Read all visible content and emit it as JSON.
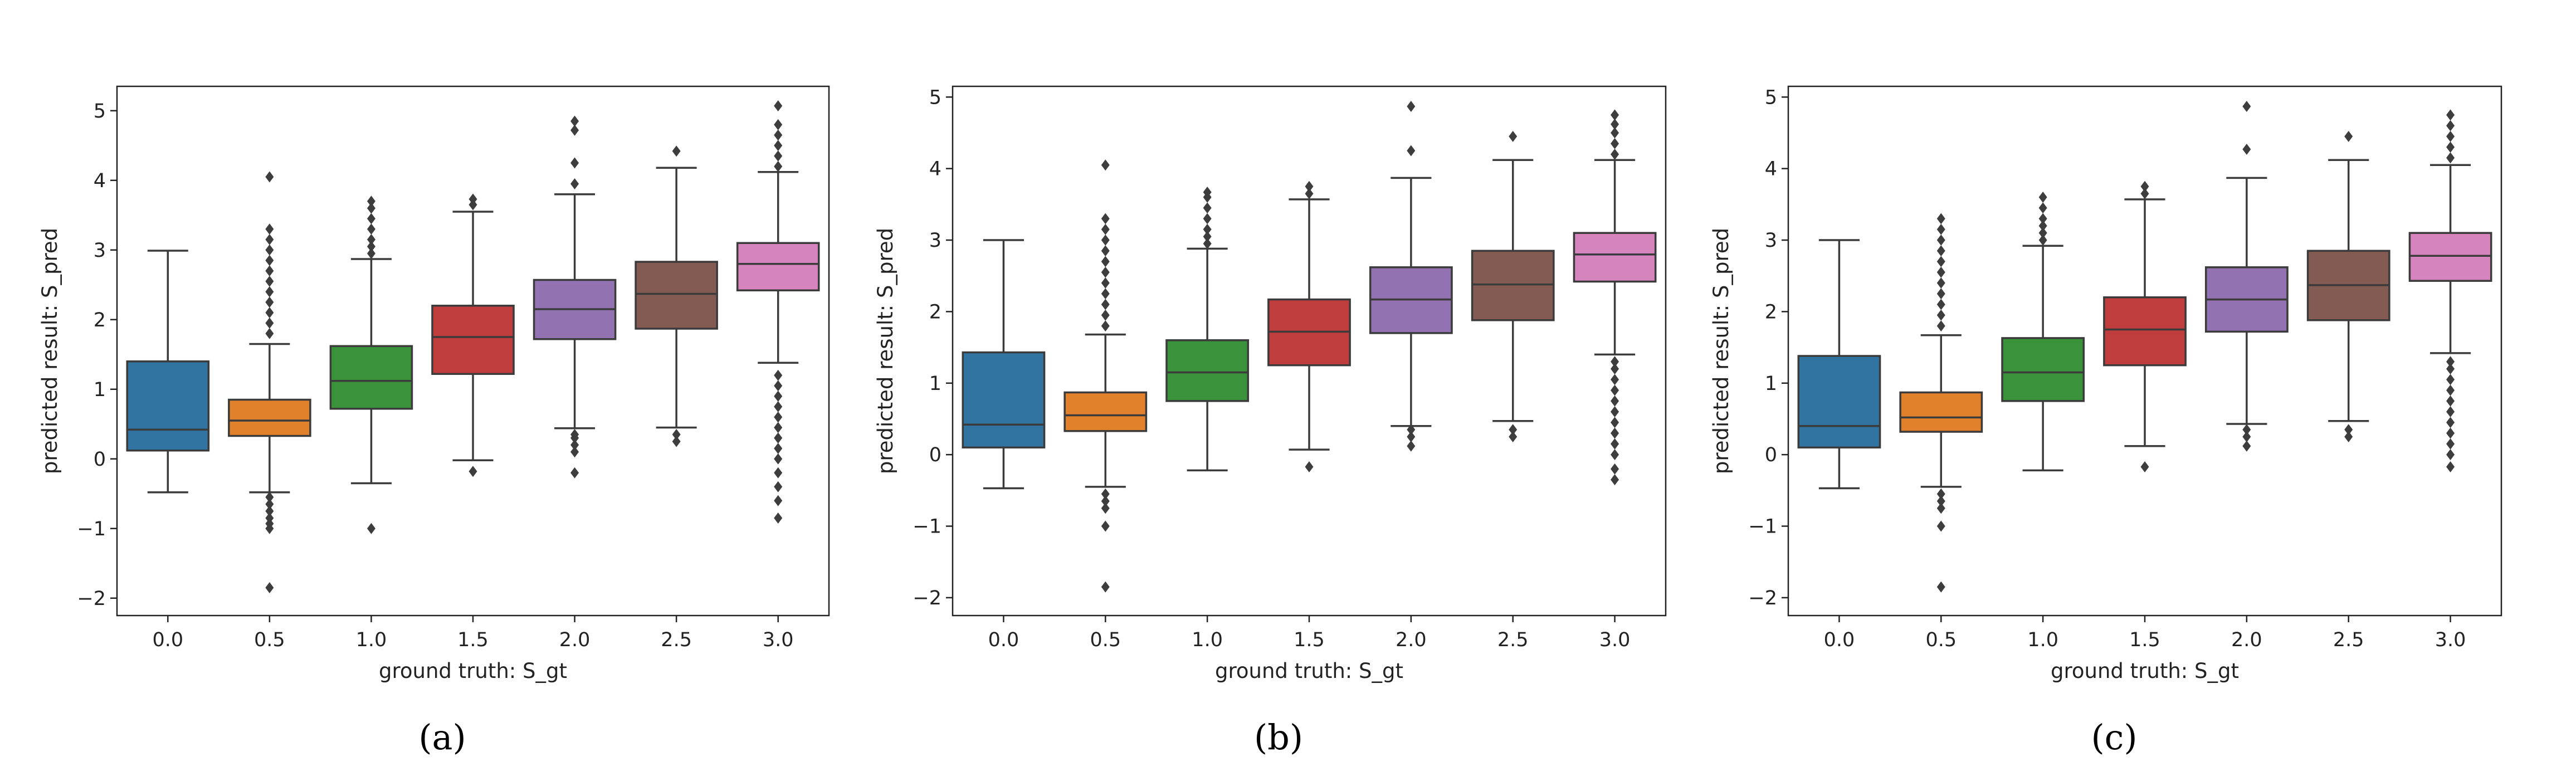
{
  "chart_data": [
    {
      "type": "box",
      "caption": "(a)",
      "xlabel": "ground truth: S_gt",
      "ylabel": "predicted result: S_pred",
      "ylim": [
        -2.25,
        5.35
      ],
      "yticks": [
        -2,
        -1,
        0,
        1,
        2,
        3,
        4,
        5
      ],
      "categories": [
        "0.0",
        "0.5",
        "1.0",
        "1.5",
        "2.0",
        "2.5",
        "3.0"
      ],
      "colors": [
        "#3274a1",
        "#e1812c",
        "#3a923a",
        "#c03d3e",
        "#9372b2",
        "#845b53",
        "#d684bd"
      ],
      "boxes": [
        {
          "low": -0.48,
          "q1": 0.12,
          "median": 0.42,
          "q3": 1.4,
          "high": 2.99,
          "outliers": []
        },
        {
          "low": -0.48,
          "q1": 0.33,
          "median": 0.55,
          "q3": 0.85,
          "high": 1.65,
          "outliers": [
            -1.85,
            -0.93,
            -1.0,
            -0.55,
            -0.65,
            -0.75,
            -0.85,
            1.8,
            1.95,
            2.1,
            2.25,
            2.4,
            2.55,
            2.7,
            2.85,
            3.0,
            3.15,
            3.3,
            4.05
          ]
        },
        {
          "low": -0.35,
          "q1": 0.72,
          "median": 1.12,
          "q3": 1.62,
          "high": 2.87,
          "outliers": [
            -1.0,
            2.95,
            3.05,
            3.15,
            3.3,
            3.45,
            3.6,
            3.7
          ]
        },
        {
          "low": -0.02,
          "q1": 1.22,
          "median": 1.75,
          "q3": 2.2,
          "high": 3.55,
          "outliers": [
            -0.18,
            3.65,
            3.73
          ]
        },
        {
          "low": 0.44,
          "q1": 1.72,
          "median": 2.15,
          "q3": 2.57,
          "high": 3.8,
          "outliers": [
            -0.2,
            0.1,
            0.2,
            0.3,
            0.35,
            3.95,
            4.25,
            4.72,
            4.85
          ]
        },
        {
          "low": 0.45,
          "q1": 1.87,
          "median": 2.37,
          "q3": 2.83,
          "high": 4.18,
          "outliers": [
            0.25,
            0.35,
            4.42
          ]
        },
        {
          "low": 1.38,
          "q1": 2.42,
          "median": 2.8,
          "q3": 3.1,
          "high": 4.12,
          "outliers": [
            -0.85,
            -0.6,
            -0.4,
            -0.2,
            0.0,
            0.15,
            0.3,
            0.45,
            0.6,
            0.75,
            0.9,
            1.05,
            1.2,
            4.2,
            4.35,
            4.5,
            4.65,
            4.8,
            5.07
          ]
        }
      ]
    },
    {
      "type": "box",
      "caption": "(b)",
      "xlabel": "ground truth: S_gt",
      "ylabel": "predicted result: S_pred",
      "ylim": [
        -2.25,
        5.15
      ],
      "yticks": [
        -2,
        -1,
        0,
        1,
        2,
        3,
        4,
        5
      ],
      "categories": [
        "0.0",
        "0.5",
        "1.0",
        "1.5",
        "2.0",
        "2.5",
        "3.0"
      ],
      "colors": [
        "#3274a1",
        "#e1812c",
        "#3a923a",
        "#c03d3e",
        "#9372b2",
        "#845b53",
        "#d684bd"
      ],
      "boxes": [
        {
          "low": -0.47,
          "q1": 0.1,
          "median": 0.42,
          "q3": 1.43,
          "high": 3.0,
          "outliers": []
        },
        {
          "low": -0.45,
          "q1": 0.33,
          "median": 0.55,
          "q3": 0.87,
          "high": 1.68,
          "outliers": [
            -1.85,
            -1.0,
            -0.55,
            -0.65,
            -0.75,
            1.8,
            1.95,
            2.1,
            2.25,
            2.4,
            2.55,
            2.7,
            2.85,
            3.0,
            3.15,
            3.3,
            4.05
          ]
        },
        {
          "low": -0.22,
          "q1": 0.75,
          "median": 1.15,
          "q3": 1.6,
          "high": 2.88,
          "outliers": [
            2.95,
            3.05,
            3.15,
            3.3,
            3.45,
            3.6,
            3.67
          ]
        },
        {
          "low": 0.07,
          "q1": 1.25,
          "median": 1.72,
          "q3": 2.17,
          "high": 3.57,
          "outliers": [
            -0.17,
            3.65,
            3.75
          ]
        },
        {
          "low": 0.4,
          "q1": 1.7,
          "median": 2.17,
          "q3": 2.62,
          "high": 3.87,
          "outliers": [
            0.12,
            0.25,
            0.35,
            4.25,
            4.87
          ]
        },
        {
          "low": 0.47,
          "q1": 1.88,
          "median": 2.38,
          "q3": 2.85,
          "high": 4.12,
          "outliers": [
            0.25,
            0.35,
            4.45
          ]
        },
        {
          "low": 1.4,
          "q1": 2.42,
          "median": 2.8,
          "q3": 3.1,
          "high": 4.12,
          "outliers": [
            -0.35,
            -0.2,
            0.0,
            0.15,
            0.3,
            0.45,
            0.6,
            0.75,
            0.9,
            1.05,
            1.2,
            1.3,
            4.2,
            4.35,
            4.5,
            4.62,
            4.75
          ]
        }
      ]
    },
    {
      "type": "box",
      "caption": "(c)",
      "xlabel": "ground truth: S_gt",
      "ylabel": "predicted result: S_pred",
      "ylim": [
        -2.25,
        5.15
      ],
      "yticks": [
        -2,
        -1,
        0,
        1,
        2,
        3,
        4,
        5
      ],
      "categories": [
        "0.0",
        "0.5",
        "1.0",
        "1.5",
        "2.0",
        "2.5",
        "3.0"
      ],
      "colors": [
        "#3274a1",
        "#e1812c",
        "#3a923a",
        "#c03d3e",
        "#9372b2",
        "#845b53",
        "#d684bd"
      ],
      "boxes": [
        {
          "low": -0.47,
          "q1": 0.1,
          "median": 0.4,
          "q3": 1.38,
          "high": 3.0,
          "outliers": []
        },
        {
          "low": -0.45,
          "q1": 0.32,
          "median": 0.52,
          "q3": 0.87,
          "high": 1.67,
          "outliers": [
            -1.85,
            -1.0,
            -0.55,
            -0.65,
            -0.75,
            1.8,
            1.95,
            2.1,
            2.25,
            2.4,
            2.55,
            2.7,
            2.85,
            3.0,
            3.15,
            3.3
          ]
        },
        {
          "low": -0.22,
          "q1": 0.75,
          "median": 1.15,
          "q3": 1.63,
          "high": 2.92,
          "outliers": [
            3.0,
            3.1,
            3.2,
            3.3,
            3.45,
            3.6
          ]
        },
        {
          "low": 0.12,
          "q1": 1.25,
          "median": 1.75,
          "q3": 2.2,
          "high": 3.57,
          "outliers": [
            -0.17,
            3.65,
            3.75
          ]
        },
        {
          "low": 0.43,
          "q1": 1.72,
          "median": 2.17,
          "q3": 2.62,
          "high": 3.87,
          "outliers": [
            0.12,
            0.25,
            0.35,
            4.27,
            4.87
          ]
        },
        {
          "low": 0.47,
          "q1": 1.88,
          "median": 2.37,
          "q3": 2.85,
          "high": 4.12,
          "outliers": [
            0.25,
            0.35,
            4.45
          ]
        },
        {
          "low": 1.42,
          "q1": 2.43,
          "median": 2.78,
          "q3": 3.1,
          "high": 4.05,
          "outliers": [
            -0.17,
            0.0,
            0.15,
            0.3,
            0.45,
            0.6,
            0.75,
            0.9,
            1.05,
            1.2,
            1.3,
            4.15,
            4.3,
            4.45,
            4.6,
            4.75
          ]
        }
      ]
    }
  ]
}
